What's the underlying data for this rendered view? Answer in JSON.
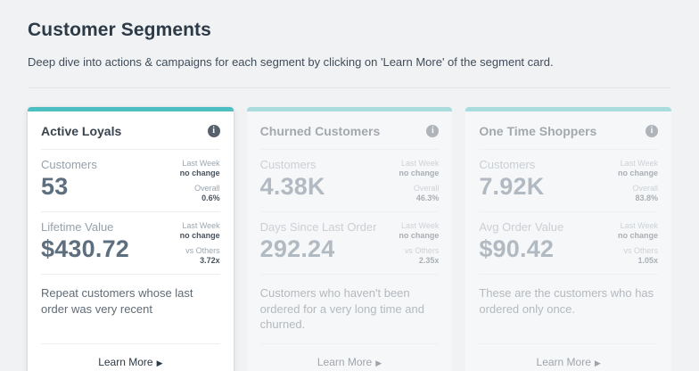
{
  "page": {
    "title": "Customer Segments",
    "subtitle": "Deep dive into actions & campaigns for each segment by clicking on 'Learn More' of the segment card."
  },
  "colors": {
    "accent_teal": "#4bbfc2",
    "page_background": "#f0f2f4",
    "card_background": "#ffffff",
    "heading_text": "#2d3a47",
    "metric_value_text": "#5d6e7e",
    "metric_label_text": "#95a1ac"
  },
  "icons": {
    "info_glyph": "i",
    "arrow_glyph": "▶"
  },
  "cards": [
    {
      "title": "Active Loyals",
      "state": "active",
      "metrics": [
        {
          "label": "Customers",
          "value": "53",
          "stats": [
            {
              "label": "Last Week",
              "value": "no change"
            },
            {
              "label": "Overall",
              "value": "0.6%"
            }
          ]
        },
        {
          "label": "Lifetime Value",
          "value": "$430.72",
          "stats": [
            {
              "label": "Last Week",
              "value": "no change"
            },
            {
              "label": "vs Others",
              "value": "3.72x"
            }
          ]
        }
      ],
      "description": "Repeat customers whose last order was very recent",
      "learn_more_label": "Learn More"
    },
    {
      "title": "Churned Customers",
      "state": "faded",
      "metrics": [
        {
          "label": "Customers",
          "value": "4.38K",
          "stats": [
            {
              "label": "Last Week",
              "value": "no change"
            },
            {
              "label": "Overall",
              "value": "46.3%"
            }
          ]
        },
        {
          "label": "Days Since Last Order",
          "value": "292.24",
          "stats": [
            {
              "label": "Last Week",
              "value": "no change"
            },
            {
              "label": "vs Others",
              "value": "2.35x"
            }
          ]
        }
      ],
      "description": "Customers who haven't been ordered for a very long time and churned.",
      "learn_more_label": "Learn More"
    },
    {
      "title": "One Time Shoppers",
      "state": "faded",
      "metrics": [
        {
          "label": "Customers",
          "value": "7.92K",
          "stats": [
            {
              "label": "Last Week",
              "value": "no change"
            },
            {
              "label": "Overall",
              "value": "83.8%"
            }
          ]
        },
        {
          "label": "Avg Order Value",
          "value": "$90.42",
          "stats": [
            {
              "label": "Last Week",
              "value": "no change"
            },
            {
              "label": "vs Others",
              "value": "1.05x"
            }
          ]
        }
      ],
      "description": "These are the customers who has ordered only once.",
      "learn_more_label": "Learn More"
    }
  ]
}
